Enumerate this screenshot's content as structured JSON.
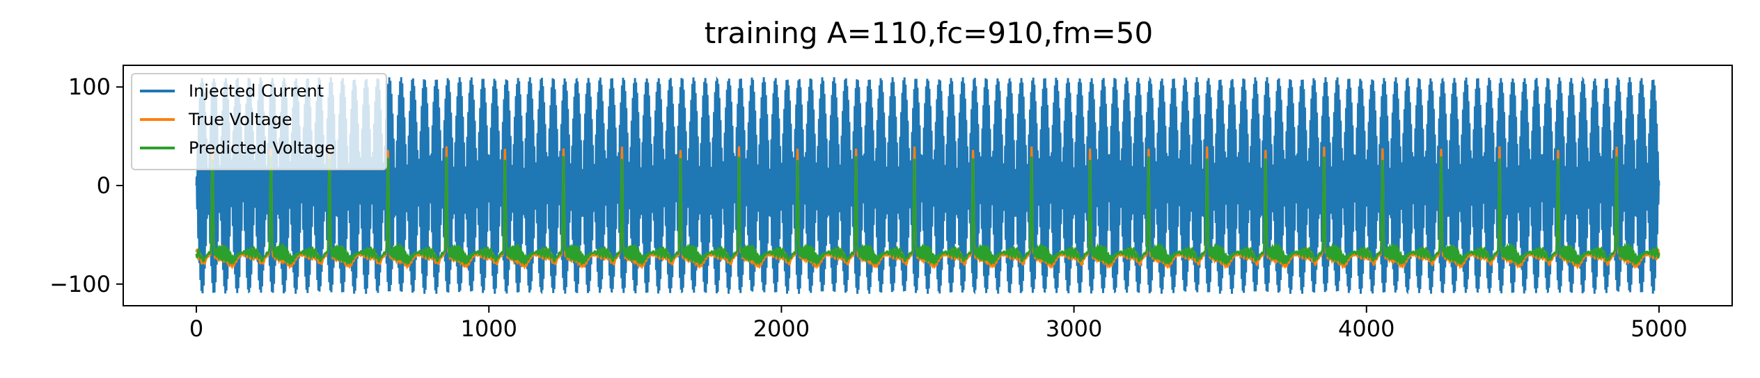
{
  "chart_data": {
    "type": "line",
    "title": "training A=110,fc=910,fm=50",
    "xlabel": "",
    "ylabel": "",
    "xlim": [
      -250,
      5250
    ],
    "ylim": [
      -122,
      122
    ],
    "x_ticks": [
      0,
      1000,
      2000,
      3000,
      4000,
      5000
    ],
    "x_tick_labels": [
      "0",
      "1000",
      "2000",
      "3000",
      "4000",
      "5000"
    ],
    "y_ticks": [
      -100,
      0,
      100
    ],
    "y_tick_labels": [
      "−100",
      "0",
      "100"
    ],
    "grid": false,
    "legend_position": "upper-left",
    "x_range": [
      0,
      5000
    ],
    "series": [
      {
        "name": "Injected Current",
        "color": "#1f77b4",
        "model": "amplitude-modulated carrier",
        "amplitude": 110,
        "envelope_period": 40,
        "carrier_period": 3.7,
        "min": -110,
        "max": 110
      },
      {
        "name": "True Voltage",
        "color": "#ff7f0e",
        "model": "periodic action potentials",
        "spike_period": 200,
        "first_spike_x": 55,
        "resting_level": -70,
        "spike_peak": 38,
        "trough_level": -85
      },
      {
        "name": "Predicted Voltage",
        "color": "#2ca02c",
        "model": "periodic action potentials",
        "spike_period": 200,
        "first_spike_x": 55,
        "resting_level": -68,
        "spike_peak": 28,
        "trough_level": -80
      }
    ]
  }
}
